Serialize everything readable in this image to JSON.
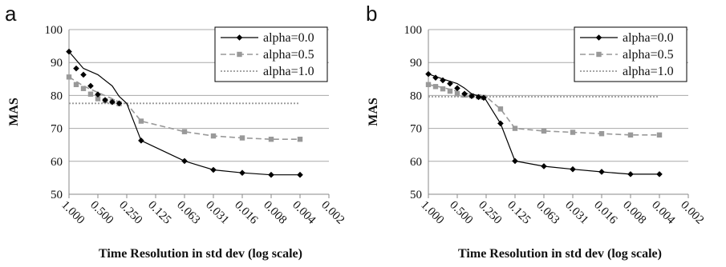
{
  "chart_data": [
    {
      "type": "line",
      "panel_label": "a",
      "xlabel": "Time Resolution in std dev (log scale)",
      "ylabel": "MAS",
      "x_tick_labels": [
        "1.000",
        "0.500",
        "0.250",
        "0.125",
        "0.063",
        "0.031",
        "0.016",
        "0.008",
        "0.004",
        "0.002"
      ],
      "x_scale": "log2",
      "x_reversed": true,
      "ylim": [
        50,
        100
      ],
      "y_ticks": [
        50,
        60,
        70,
        80,
        90,
        100
      ],
      "grid": true,
      "legend_position": "top-right",
      "series": [
        {
          "name": "alpha=0.0",
          "style": "solid",
          "marker": "diamond",
          "color": "#000000",
          "x": [
            1.0,
            0.707,
            0.5,
            0.354,
            0.3,
            0.25,
            0.177,
            0.0625,
            0.03125,
            0.015625,
            0.0078125,
            0.00390625
          ],
          "y": [
            93.3,
            88.2,
            86.3,
            82.9,
            79.7,
            77.6,
            66.3,
            60.1,
            57.4,
            56.5,
            55.9,
            55.9
          ],
          "marker_x": [
            1.0,
            0.841,
            0.707,
            0.595,
            0.5,
            0.42,
            0.354,
            0.3,
            0.177,
            0.0625,
            0.03125,
            0.015625,
            0.0078125,
            0.00390625
          ],
          "marker_y": [
            93.3,
            88.2,
            86.3,
            82.9,
            80.3,
            78.6,
            78.0,
            77.6,
            66.3,
            60.1,
            57.4,
            56.5,
            55.9,
            55.9
          ]
        },
        {
          "name": "alpha=0.5",
          "style": "dashed",
          "marker": "square",
          "color": "#999999",
          "x": [
            1.0,
            0.707,
            0.5,
            0.354,
            0.3,
            0.25,
            0.177,
            0.0625,
            0.03125,
            0.015625,
            0.0078125,
            0.00390625
          ],
          "y": [
            85.6,
            82.9,
            80.9,
            79.0,
            78.0,
            77.5,
            72.2,
            69.0,
            67.7,
            67.1,
            66.7,
            66.7
          ],
          "marker_x": [
            1.0,
            0.841,
            0.707,
            0.595,
            0.5,
            0.42,
            0.354,
            0.3,
            0.177,
            0.0625,
            0.03125,
            0.015625,
            0.0078125,
            0.00390625
          ],
          "marker_y": [
            85.6,
            83.3,
            82.1,
            80.4,
            79.0,
            78.4,
            78.1,
            77.5,
            72.2,
            69.0,
            67.7,
            67.1,
            66.7,
            66.7
          ]
        },
        {
          "name": "alpha=1.0",
          "style": "dotted",
          "marker": "none",
          "color": "#999999",
          "x": [
            1.0,
            0.00390625
          ],
          "y": [
            77.6,
            77.6
          ]
        }
      ]
    },
    {
      "type": "line",
      "panel_label": "b",
      "xlabel": "Time Resolution in std dev (log scale)",
      "ylabel": "MAS",
      "x_tick_labels": [
        "1.000",
        "0.500",
        "0.250",
        "0.125",
        "0.063",
        "0.031",
        "0.016",
        "0.008",
        "0.004",
        "0.002"
      ],
      "x_scale": "log2",
      "x_reversed": true,
      "ylim": [
        50,
        100
      ],
      "y_ticks": [
        50,
        60,
        70,
        80,
        90,
        100
      ],
      "grid": true,
      "legend_position": "top-right",
      "series": [
        {
          "name": "alpha=0.0",
          "style": "solid",
          "marker": "diamond",
          "color": "#000000",
          "x": [
            1.0,
            0.707,
            0.5,
            0.42,
            0.354,
            0.3,
            0.265,
            0.25,
            0.177,
            0.125,
            0.0625,
            0.03125,
            0.015625,
            0.0078125,
            0.00390625
          ],
          "y": [
            86.5,
            85.0,
            83.6,
            82.2,
            80.5,
            79.8,
            79.5,
            78.5,
            71.5,
            60.1,
            58.5,
            57.6,
            56.8,
            56.1,
            56.1
          ],
          "marker_x": [
            1.0,
            0.841,
            0.707,
            0.595,
            0.5,
            0.42,
            0.354,
            0.3,
            0.265,
            0.177,
            0.125,
            0.0625,
            0.03125,
            0.015625,
            0.0078125,
            0.00390625
          ],
          "marker_y": [
            86.5,
            85.4,
            84.6,
            83.6,
            82.2,
            80.5,
            79.8,
            79.5,
            79.3,
            71.5,
            60.1,
            58.5,
            57.6,
            56.8,
            56.1,
            56.1
          ]
        },
        {
          "name": "alpha=0.5",
          "style": "dashed",
          "marker": "square",
          "color": "#999999",
          "x": [
            1.0,
            0.707,
            0.5,
            0.354,
            0.3,
            0.25,
            0.177,
            0.125,
            0.0625,
            0.03125,
            0.015625,
            0.0078125,
            0.00390625
          ],
          "y": [
            83.3,
            82.4,
            81.3,
            80.3,
            79.9,
            79.6,
            75.9,
            70.0,
            69.2,
            68.8,
            68.4,
            68.0,
            68.0
          ],
          "marker_x": [
            1.0,
            0.841,
            0.707,
            0.595,
            0.5,
            0.42,
            0.354,
            0.3,
            0.265,
            0.177,
            0.125,
            0.0625,
            0.03125,
            0.015625,
            0.0078125,
            0.00390625
          ],
          "marker_y": [
            83.3,
            82.7,
            82.0,
            81.3,
            80.5,
            80.1,
            79.9,
            79.6,
            79.4,
            75.9,
            70.0,
            69.2,
            68.8,
            68.4,
            68.0,
            68.0
          ]
        },
        {
          "name": "alpha=1.0",
          "style": "dotted",
          "marker": "none",
          "color": "#999999",
          "x": [
            1.0,
            0.00390625
          ],
          "y": [
            79.6,
            79.6
          ]
        }
      ]
    }
  ]
}
